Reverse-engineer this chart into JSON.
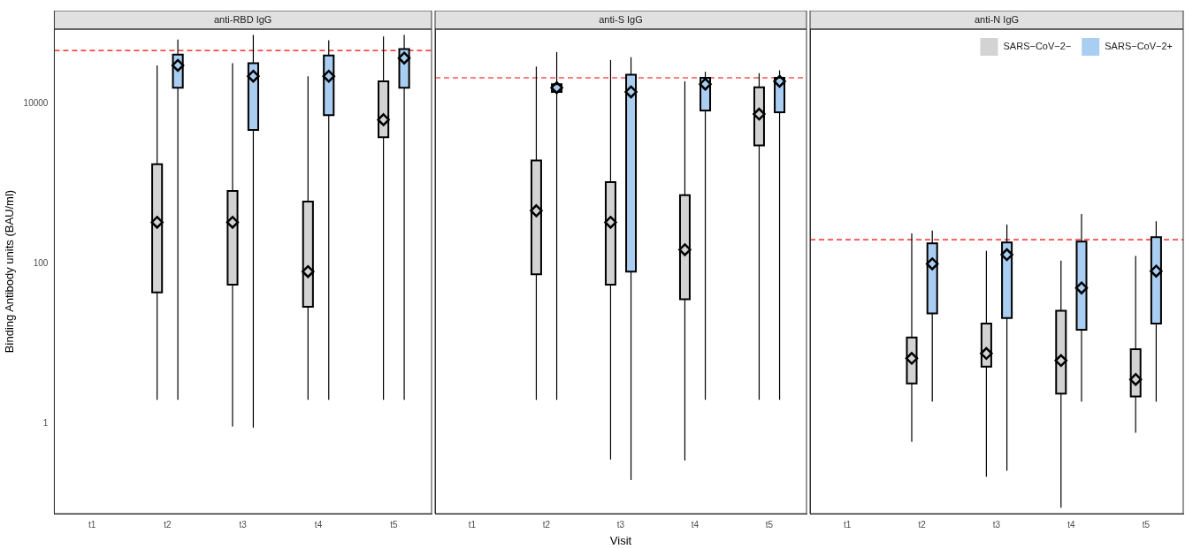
{
  "chart_data": [
    {
      "type": "box",
      "title": "anti-RBD IgG",
      "ylabel": "Binding Antibody units (BAU/ml)",
      "categories": [
        "t1",
        "t2",
        "t3",
        "t4",
        "t5"
      ],
      "log": "y",
      "ylim": [
        0.076,
        85000
      ],
      "yticks": [
        1,
        100,
        10000
      ],
      "grid": false,
      "legend": false,
      "ref_lines": [
        {
          "axis": "y",
          "value": 46000,
          "color": "#ff0000",
          "line_style": "dashed"
        }
      ],
      "series": [
        {
          "color": "#d3d3d3",
          "boxes": [
            null,
            {
              "low": 2,
              "q1": 44,
              "median": 330,
              "q3": 1750,
              "high": 30000
            },
            {
              "low": 0.93,
              "q1": 55,
              "median": 330,
              "q3": 810,
              "high": 32000
            },
            {
              "low": 2,
              "q1": 29,
              "median": 80,
              "q3": 600,
              "high": 22000
            },
            {
              "low": 2,
              "q1": 3800,
              "median": 6300,
              "q3": 19000,
              "high": 69000
            }
          ]
        },
        {
          "color": "#aacdf2",
          "boxes": [
            null,
            {
              "low": 2,
              "q1": 15800,
              "median": 30000,
              "q3": 41000,
              "high": 63000
            },
            {
              "low": 0.9,
              "q1": 4700,
              "median": 22000,
              "q3": 32000,
              "high": 72000
            },
            {
              "low": 2,
              "q1": 7200,
              "median": 22000,
              "q3": 40000,
              "high": 62000
            },
            {
              "low": 2,
              "q1": 15800,
              "median": 37000,
              "q3": 48000,
              "high": 72000
            }
          ]
        }
      ]
    },
    {
      "type": "box",
      "title": "anti-S IgG",
      "xlabel": "Visit",
      "categories": [
        "t1",
        "t2",
        "t3",
        "t4",
        "t5"
      ],
      "log": "y",
      "ylim": [
        0.076,
        85000
      ],
      "yticks": [
        1,
        100,
        10000
      ],
      "tick_labels": "x",
      "grid": false,
      "legend": false,
      "ref_lines": [
        {
          "axis": "y",
          "value": 21000,
          "color": "#ff0000",
          "line_style": "dashed"
        }
      ],
      "series": [
        {
          "color": "#d3d3d3",
          "boxes": [
            null,
            {
              "low": 2,
              "q1": 74,
              "median": 460,
              "q3": 1950,
              "high": 29000
            },
            {
              "low": 0.36,
              "q1": 55,
              "median": 330,
              "q3": 1050,
              "high": 35000
            },
            {
              "low": 0.35,
              "q1": 36,
              "median": 150,
              "q3": 720,
              "high": 19000
            },
            {
              "low": 2,
              "q1": 3000,
              "median": 7400,
              "q3": 16000,
              "high": 24000
            }
          ]
        },
        {
          "color": "#aacdf2",
          "boxes": [
            null,
            {
              "low": 2,
              "q1": 14000,
              "median": 15800,
              "q3": 17500,
              "high": 44000
            },
            {
              "low": 0.2,
              "q1": 80,
              "median": 14000,
              "q3": 23000,
              "high": 38000
            },
            {
              "low": 2,
              "q1": 8200,
              "median": 17500,
              "q3": 21000,
              "high": 25000
            },
            {
              "low": 2,
              "q1": 7800,
              "median": 19000,
              "q3": 21000,
              "high": 26000
            }
          ]
        }
      ]
    },
    {
      "type": "box",
      "title": "anti-N IgG",
      "categories": [
        "t1",
        "t2",
        "t3",
        "t4",
        "t5"
      ],
      "log": "y",
      "ylim": [
        0.076,
        85000
      ],
      "yticks": [
        1,
        100,
        10000
      ],
      "tick_labels": "x",
      "grid": false,
      "legend": "top right",
      "ref_lines": [
        {
          "axis": "y",
          "value": 200,
          "color": "#ff0000",
          "line_style": "dashed"
        }
      ],
      "series": [
        {
          "name": "SARS−CoV−2−",
          "color": "#d3d3d3",
          "boxes": [
            null,
            {
              "low": 0.6,
              "q1": 3.2,
              "median": 6.6,
              "q3": 12,
              "high": 240
            },
            {
              "low": 0.22,
              "q1": 5.2,
              "median": 7.6,
              "q3": 18,
              "high": 145
            },
            {
              "low": 0.09,
              "q1": 2.4,
              "median": 6.2,
              "q3": 26,
              "high": 110
            },
            {
              "low": 0.78,
              "q1": 2.2,
              "median": 3.6,
              "q3": 8.6,
              "high": 125
            }
          ]
        },
        {
          "name": "SARS−CoV−2+",
          "color": "#aacdf2",
          "boxes": [
            null,
            {
              "low": 1.9,
              "q1": 24,
              "median": 100,
              "q3": 180,
              "high": 260
            },
            {
              "low": 0.26,
              "q1": 21,
              "median": 130,
              "q3": 185,
              "high": 310
            },
            {
              "low": 1.9,
              "q1": 15,
              "median": 50,
              "q3": 190,
              "high": 420
            },
            {
              "low": 1.9,
              "q1": 18,
              "median": 81,
              "q3": 215,
              "high": 340
            }
          ]
        }
      ]
    }
  ]
}
